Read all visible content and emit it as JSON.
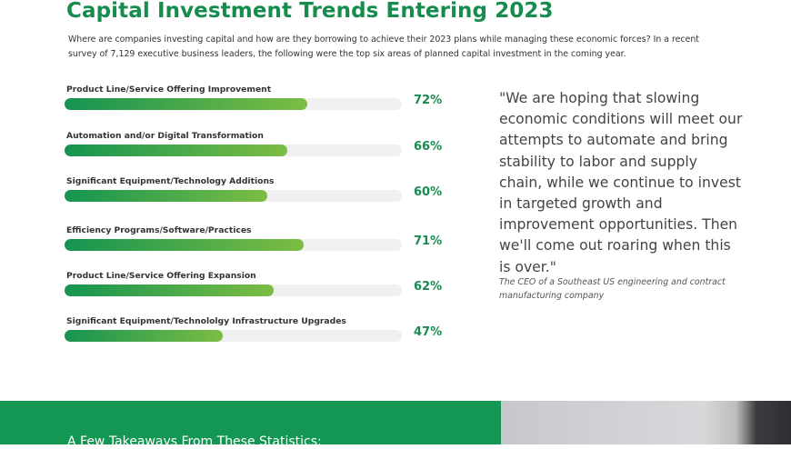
{
  "header": {
    "title": "Capital Investment Trends Entering 2023",
    "subtitle": "Where are companies investing capital and how are they borrowing to achieve their 2023 plans while managing these economic forces? In a recent survey of 7,129 executive business leaders, the following were the top six areas of planned capital investment in the coming year."
  },
  "chart_data": {
    "type": "bar",
    "orientation": "horizontal",
    "categories": [
      "Product Line/Service Offering Improvement",
      "Automation and/or Digital Transformation",
      "Significant Equipment/Technology Additions",
      "Efficiency Programs/Software/Practices",
      "Product Line/Service Offering Expansion",
      "Significant Equipment/Technololgy Infrastructure Upgrades"
    ],
    "values": [
      72,
      66,
      60,
      71,
      62,
      47
    ],
    "value_labels": [
      "72%",
      "66%",
      "60%",
      "71%",
      "62%",
      "47%"
    ],
    "xlim": [
      0,
      100
    ],
    "colors": {
      "fill_start": "#159451",
      "fill_end": "#7cbd43",
      "track": "#f0f0f0",
      "label": "#178c4e"
    }
  },
  "quote": {
    "text": "\"We are hoping that slowing economic conditions will meet our attempts to automate and bring stability to labor and supply chain, while we continue to invest in targeted growth and improvement opportunities. Then we'll come out roaring when this is over.\"",
    "attribution": "The CEO of a Southeast US engineering and contract manufacturing company"
  },
  "takeaways": {
    "heading": "A Few Takeaways From These Statistics:",
    "background": "#149753"
  }
}
